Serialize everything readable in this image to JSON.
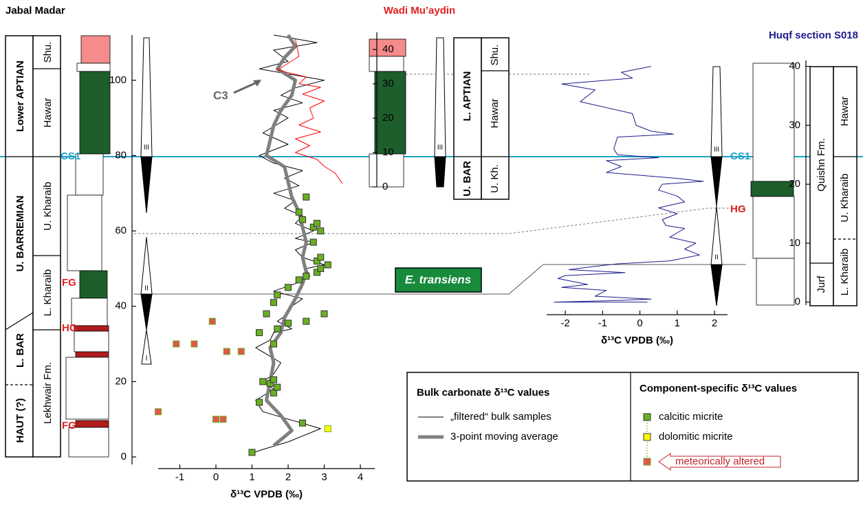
{
  "chart_data": [
    {
      "type": "line",
      "title": "Jabal Madar",
      "xlabel": "δ¹³C VPDB (‰)",
      "xlim": [
        -1.6,
        4.4
      ],
      "xticks": [
        -1,
        0,
        1,
        2,
        3,
        4
      ],
      "ylim": [
        -2,
        112
      ],
      "yticks": [
        0,
        20,
        40,
        60,
        80,
        100
      ],
      "legend_titles": [
        "Bulk carbonate δ¹³C values",
        "Component-specific δ¹³C values"
      ],
      "series": [
        {
          "name": "„filtered“ bulk samples",
          "type": "line",
          "color": "#000000",
          "width": 1,
          "x": [
            1.0,
            1.3,
            2.0,
            2.9,
            1.3,
            1.1,
            1.6,
            1.3,
            1.6,
            1.8,
            1.1,
            1.5,
            1.6,
            2.1,
            1.7,
            2.0,
            2.1,
            2.4,
            1.6,
            2.2,
            2.6,
            2.5,
            3.0,
            2.4,
            2.2,
            2.7,
            2.2,
            2.7,
            2.2,
            2.4,
            1.9,
            2.2,
            1.6,
            2.3,
            1.9,
            2.4,
            1.6,
            1.2,
            2.0,
            1.3,
            2.0,
            1.6,
            2.4,
            1.8,
            2.2,
            3.0,
            1.2,
            2.0,
            1.6,
            2.8,
            1.6
          ],
          "values": [
            1,
            2,
            4,
            7.5,
            12,
            15,
            18,
            20,
            22,
            25,
            29,
            31,
            33,
            34,
            36,
            38,
            40,
            42,
            44,
            46,
            48,
            50,
            51,
            53,
            55,
            57,
            58,
            60,
            62,
            64,
            66,
            68,
            70,
            72,
            74,
            76,
            78,
            80,
            83,
            86,
            90,
            92,
            94,
            96,
            98,
            100,
            103,
            105,
            108,
            110,
            112
          ]
        },
        {
          "name": "3-point moving average",
          "type": "line",
          "color": "#808080",
          "width": 5,
          "x": [
            1.6,
            2.1,
            1.8,
            1.4,
            1.5,
            1.6,
            1.5,
            1.8,
            1.9,
            2.2,
            2.4,
            2.5,
            2.4,
            2.5,
            2.4,
            2.3,
            2.1,
            2.0,
            1.9,
            1.4,
            1.5,
            1.6,
            1.8,
            2.1,
            2.2,
            1.7,
            1.9,
            2.2,
            2.0
          ],
          "values": [
            3,
            7,
            11,
            15,
            20,
            25,
            29,
            33,
            37,
            42,
            46,
            49,
            53,
            57,
            61,
            65,
            69,
            73,
            77,
            80,
            84,
            88,
            92,
            96,
            100,
            103,
            106,
            109,
            112
          ]
        },
        {
          "name": "calcitic micrite",
          "type": "scatter",
          "color": "#6ab023",
          "x": [
            1.0,
            2.4,
            1.2,
            1.6,
            1.7,
            1.5,
            1.3,
            1.6,
            1.6,
            1.2,
            1.7,
            2.0,
            2.5,
            3.0,
            1.4,
            1.6,
            1.7,
            2.0,
            2.3,
            2.5,
            2.8,
            2.9,
            3.1,
            2.8,
            2.9,
            2.7,
            2.9,
            2.7,
            2.8,
            2.4,
            2.3,
            2.5
          ],
          "values": [
            1.2,
            9,
            14.5,
            17,
            18.5,
            19.5,
            20,
            20.5,
            30,
            33,
            34,
            35.5,
            36,
            38,
            38,
            41,
            43,
            45,
            47,
            48,
            49,
            50,
            51,
            52,
            53,
            57,
            60,
            61,
            62,
            63,
            65,
            69
          ]
        },
        {
          "name": "dolomitic micrite",
          "type": "scatter",
          "color": "#ffff00",
          "x": [
            3.1
          ],
          "values": [
            7.5
          ]
        },
        {
          "name": "meteorically altered",
          "type": "scatter",
          "color": "#e0564a",
          "x": [
            -1.6,
            0.0,
            0.2,
            -1.1,
            -0.6,
            0.3,
            0.7,
            -0.1
          ],
          "values": [
            12,
            10,
            10,
            30,
            30,
            28,
            28,
            36
          ]
        }
      ]
    },
    {
      "type": "line",
      "title": "Wadi Mu’aydin",
      "xlim": [
        -1.6,
        4.4
      ],
      "ylim": [
        0,
        45
      ],
      "yticks": [
        0,
        10,
        20,
        30,
        40
      ],
      "series": [
        {
          "type": "line",
          "color": "#ff0000",
          "width": 1,
          "x": [
            2.2,
            2.3,
            2.0,
            1.7,
            2.5,
            2.3,
            2.9,
            2.4,
            3.0,
            2.6,
            2.7,
            2.3,
            2.9,
            2.2,
            2.6,
            2.2,
            2.8,
            3.0,
            3.3,
            3.5
          ],
          "values": [
            43,
            38,
            36,
            34,
            32,
            30,
            29,
            27,
            25,
            23,
            20,
            18,
            16,
            14,
            12,
            10,
            8,
            6,
            4,
            1
          ]
        }
      ]
    },
    {
      "type": "line",
      "title": "Huqf section S018",
      "xlabel": "δ¹³C VPDB (‰)",
      "xlim": [
        -2.5,
        2.35
      ],
      "xticks": [
        -2,
        -1,
        0,
        1,
        2
      ],
      "ylim": [
        -0.5,
        41
      ],
      "yticks": [
        0,
        10,
        20,
        30,
        40
      ],
      "series": [
        {
          "type": "line",
          "color": "#1a1a8c",
          "width": 1,
          "x": [
            0.3,
            -0.5,
            -0.2,
            -2.1,
            -1.2,
            -1.6,
            -0.2,
            -0.1,
            0.3,
            0.9,
            -0.6,
            -0.7,
            -0.6,
            0.5,
            -0.9,
            -0.5,
            -0.9,
            1.0,
            1.7,
            0.6,
            0.5,
            1.0,
            1.2,
            0.5,
            1.0,
            0.6,
            0.7,
            1.2,
            0.8,
            1.5,
            1.2,
            1.6,
            0.8,
            -0.6,
            -1.3,
            -1.9,
            -0.4,
            -2.0,
            -2.2,
            -1.4,
            -2.1,
            -0.9,
            -1.2,
            0.3,
            -0.5,
            -2.3,
            0.2
          ],
          "values": [
            40,
            39,
            38,
            37,
            36,
            34,
            32,
            30,
            29,
            28.5,
            28,
            26,
            25,
            24.5,
            24,
            23,
            22,
            21,
            20.5,
            20,
            19,
            18,
            17,
            16,
            15,
            14,
            13,
            12.5,
            11,
            10,
            9,
            8,
            7,
            6.5,
            6,
            5.5,
            5,
            4.5,
            4,
            3,
            2.5,
            2,
            1,
            0.5,
            0.3,
            0,
            0
          ]
        }
      ]
    }
  ],
  "stratigraphy": {
    "jabal_madar": {
      "stages": [
        "Lower APTIAN",
        "U. BARREMIAN",
        "L. BAR",
        "HAUT (?)"
      ],
      "formations": [
        "Shu.",
        "Hawar",
        "U. Kharaib",
        "L. Kharaib",
        "Lekhwair Fm."
      ]
    },
    "wadi_muaydin": {
      "stages": [
        "L. APTIAN",
        "U. BAR"
      ],
      "formations": [
        "Shu.",
        "Hawar",
        "U. Kh."
      ]
    },
    "huqf": {
      "formations": [
        "Quishn Fm.",
        "Jurf"
      ],
      "members": [
        "Hawar",
        "U. Kharaib",
        "L. Kharaib"
      ]
    }
  },
  "annotations": {
    "c3": "C3",
    "cs1": "CS1",
    "fg": "FG",
    "hg": "HG",
    "e_transiens": "E. transiens",
    "seq1": "I",
    "seq2": "II",
    "seq3": "III"
  }
}
